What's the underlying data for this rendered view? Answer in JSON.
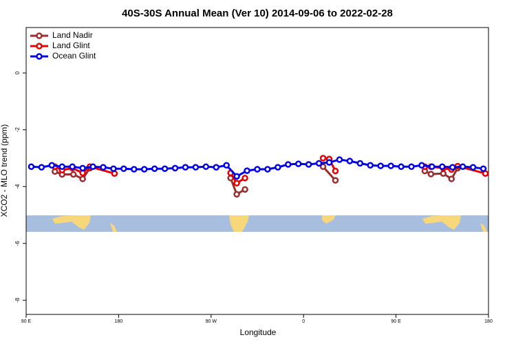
{
  "chart_data": {
    "type": "line",
    "title": "40S-30S Annual Mean (Ver 10)   2014-09-06 to 2022-02-28",
    "x_label": "Longitude",
    "y_label": "XCO2 - MLO trend (ppm)",
    "xlim": [
      90,
      540
    ],
    "xticks": [
      {
        "value": 90,
        "label": "90 E"
      },
      {
        "value": 180,
        "label": "180"
      },
      {
        "value": 270,
        "label": "90 W"
      },
      {
        "value": 360,
        "label": "0"
      },
      {
        "value": 450,
        "label": "90 E"
      },
      {
        "value": 540,
        "label": "180"
      }
    ],
    "ylim": [
      -8.5,
      1.6
    ],
    "yticks": [
      0,
      -2,
      -4,
      -6,
      -8
    ],
    "legend": "top-left",
    "series": [
      {
        "name": "Land Nadir",
        "color": "#9b2d2d",
        "x": [
          118,
          125,
          136,
          145,
          152,
          null,
          289,
          295,
          303,
          null,
          379,
          391,
          null,
          478,
          484,
          496,
          504,
          510
        ],
        "values": [
          -3.47,
          -3.57,
          -3.57,
          -3.73,
          -3.35,
          null,
          -3.7,
          -4.27,
          -4.1,
          null,
          -3.3,
          -3.78,
          null,
          -3.45,
          -3.56,
          -3.54,
          -3.73,
          -3.35
        ]
      },
      {
        "name": "Land Glint",
        "color": "#e60000",
        "x": [
          118,
          125,
          135,
          145,
          152,
          176,
          null,
          289,
          295,
          303,
          null,
          379,
          385,
          391,
          null,
          478,
          484,
          496,
          504,
          510,
          537
        ],
        "values": [
          -3.3,
          -3.42,
          -3.35,
          -3.52,
          -3.3,
          -3.54,
          null,
          -3.52,
          -3.88,
          -3.7,
          null,
          -3.0,
          -3.03,
          -3.45,
          null,
          -3.3,
          -3.3,
          -3.35,
          -3.4,
          -3.28,
          -3.54
        ]
      },
      {
        "name": "Ocean Glint",
        "color": "#0000e6",
        "x": [
          95,
          105,
          115,
          125,
          135,
          145,
          155,
          165,
          175,
          185,
          195,
          205,
          215,
          225,
          235,
          245,
          255,
          265,
          275,
          285,
          295,
          305,
          315,
          325,
          335,
          345,
          355,
          365,
          375,
          385,
          395,
          405,
          415,
          425,
          435,
          445,
          455,
          465,
          475,
          485,
          495,
          505,
          515,
          525,
          535
        ],
        "values": [
          -3.3,
          -3.32,
          -3.25,
          -3.3,
          -3.3,
          -3.35,
          -3.3,
          -3.32,
          -3.37,
          -3.37,
          -3.39,
          -3.39,
          -3.37,
          -3.37,
          -3.35,
          -3.32,
          -3.32,
          -3.3,
          -3.32,
          -3.25,
          -3.64,
          -3.44,
          -3.39,
          -3.39,
          -3.32,
          -3.22,
          -3.2,
          -3.22,
          -3.18,
          -3.15,
          -3.05,
          -3.1,
          -3.18,
          -3.25,
          -3.27,
          -3.27,
          -3.3,
          -3.3,
          -3.25,
          -3.3,
          -3.3,
          -3.32,
          -3.3,
          -3.32,
          -3.37
        ]
      }
    ]
  }
}
